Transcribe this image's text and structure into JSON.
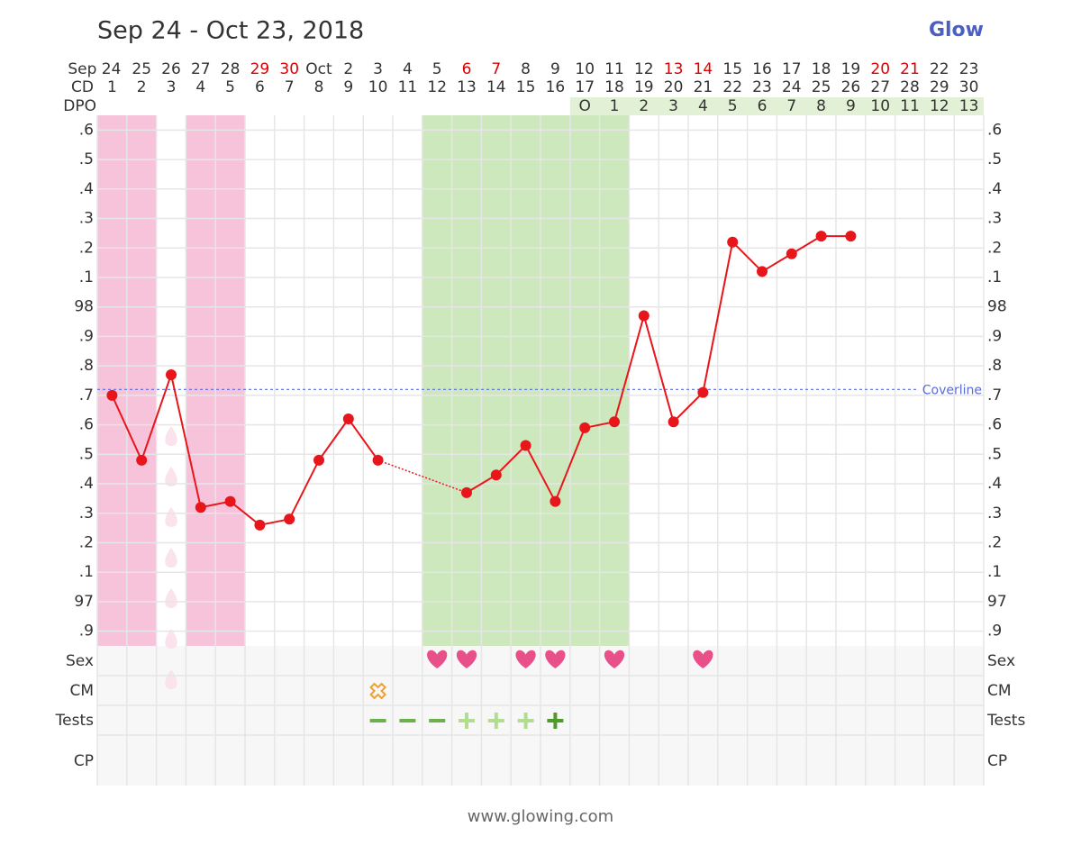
{
  "chart_data": {
    "type": "line",
    "title": "Sep 24 - Oct 23, 2018",
    "logo": "Glow",
    "footer": "www.glowing.com",
    "categories": [
      "Sep 24",
      "25",
      "26",
      "27",
      "28",
      "29",
      "30",
      "Oct",
      "2",
      "3",
      "4",
      "5",
      "6",
      "7",
      "8",
      "9",
      "10",
      "11",
      "12",
      "13",
      "14",
      "15",
      "16",
      "17",
      "18",
      "19",
      "20",
      "21",
      "22",
      "23"
    ],
    "date_colors": [
      "#333",
      "#333",
      "#333",
      "#333",
      "#333",
      "#d00",
      "#d00",
      "#333",
      "#333",
      "#333",
      "#333",
      "#333",
      "#d00",
      "#d00",
      "#333",
      "#333",
      "#333",
      "#333",
      "#333",
      "#d00",
      "#d00",
      "#333",
      "#333",
      "#333",
      "#333",
      "#333",
      "#d00",
      "#d00",
      "#333",
      "#333"
    ],
    "cd_label": "CD",
    "cd": [
      1,
      2,
      3,
      4,
      5,
      6,
      7,
      8,
      9,
      10,
      11,
      12,
      13,
      14,
      15,
      16,
      17,
      18,
      19,
      20,
      21,
      22,
      23,
      24,
      25,
      26,
      27,
      28,
      29,
      30
    ],
    "dpo_label": "DPO",
    "dpo": [
      null,
      null,
      null,
      null,
      null,
      null,
      null,
      null,
      null,
      null,
      null,
      null,
      null,
      null,
      null,
      null,
      "O",
      1,
      2,
      3,
      4,
      5,
      6,
      7,
      8,
      9,
      10,
      11,
      12,
      13
    ],
    "series": [
      {
        "color": "#e8151b",
        "values": [
          97.7,
          97.48,
          97.77,
          97.32,
          97.34,
          97.26,
          97.28,
          97.48,
          97.62,
          97.48,
          null,
          null,
          97.37,
          97.43,
          97.53,
          97.34,
          97.59,
          97.61,
          97.97,
          97.61,
          97.71,
          98.22,
          98.12,
          98.18,
          98.24,
          98.24,
          null,
          null,
          null,
          null
        ]
      }
    ],
    "ylim": [
      96.85,
      98.65
    ],
    "yticks": [
      {
        "value": 96.9,
        "label": ".9"
      },
      97,
      {
        "value": 97.1,
        "label": ".1"
      },
      {
        "value": 97.2,
        "label": ".2"
      },
      {
        "value": 97.3,
        "label": ".3"
      },
      {
        "value": 97.4,
        "label": ".4"
      },
      {
        "value": 97.5,
        "label": ".5"
      },
      {
        "value": 97.6,
        "label": ".6"
      },
      {
        "value": 97.7,
        "label": ".7"
      },
      {
        "value": 97.8,
        "label": ".8"
      },
      {
        "value": 97.9,
        "label": ".9"
      },
      98,
      {
        "value": 98.1,
        "label": ".1"
      },
      {
        "value": 98.2,
        "label": ".2"
      },
      {
        "value": 98.3,
        "label": ".3"
      },
      {
        "value": 98.4,
        "label": ".4"
      },
      {
        "value": 98.5,
        "label": ".5"
      },
      {
        "value": 98.6,
        "label": ".6"
      }
    ],
    "coverline": {
      "value": 97.72,
      "label": "Coverline"
    },
    "period_days": [
      0,
      1,
      3,
      4
    ],
    "spotting_days": [
      2
    ],
    "fertile_days": [
      11,
      12,
      13,
      14,
      15,
      16,
      17
    ],
    "rows": {
      "sex": "Sex",
      "cm": "CM",
      "tests": "Tests",
      "cp": "CP"
    },
    "sex_days": [
      11,
      12,
      14,
      15,
      17,
      20
    ],
    "cm_days": [
      9
    ],
    "tests": {
      "negative": [
        9,
        10,
        11
      ],
      "faint_positive": [
        12,
        13,
        14
      ],
      "positive": [
        15
      ]
    }
  }
}
